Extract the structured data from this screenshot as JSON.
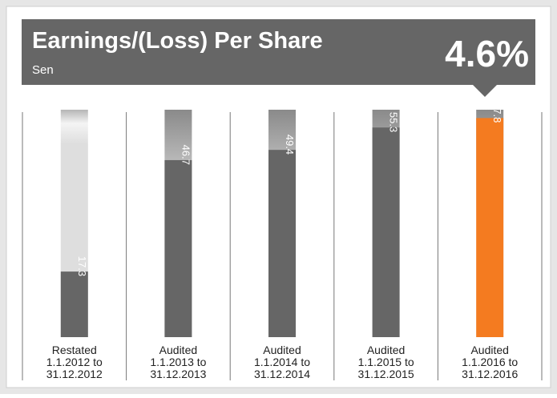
{
  "chart_data": {
    "type": "bar",
    "title": "Earnings/(Loss) Per Share",
    "subtitle": "Sen",
    "highlight": "4.6%",
    "categories": [
      "Restated\n1.1.2012 to\n31.12.2012",
      "Audited\n1.1.2013 to\n31.12.2013",
      "Audited\n1.1.2014 to\n31.12.2014",
      "Audited\n1.1.2015 to\n31.12.2015",
      "Audited\n1.1.2016 to\n31.12.2016"
    ],
    "values": [
      17.3,
      46.7,
      49.4,
      55.3,
      57.8
    ],
    "colors": [
      "#666666",
      "#666666",
      "#666666",
      "#666666",
      "#f47b20"
    ],
    "ylim": [
      0,
      60
    ]
  }
}
